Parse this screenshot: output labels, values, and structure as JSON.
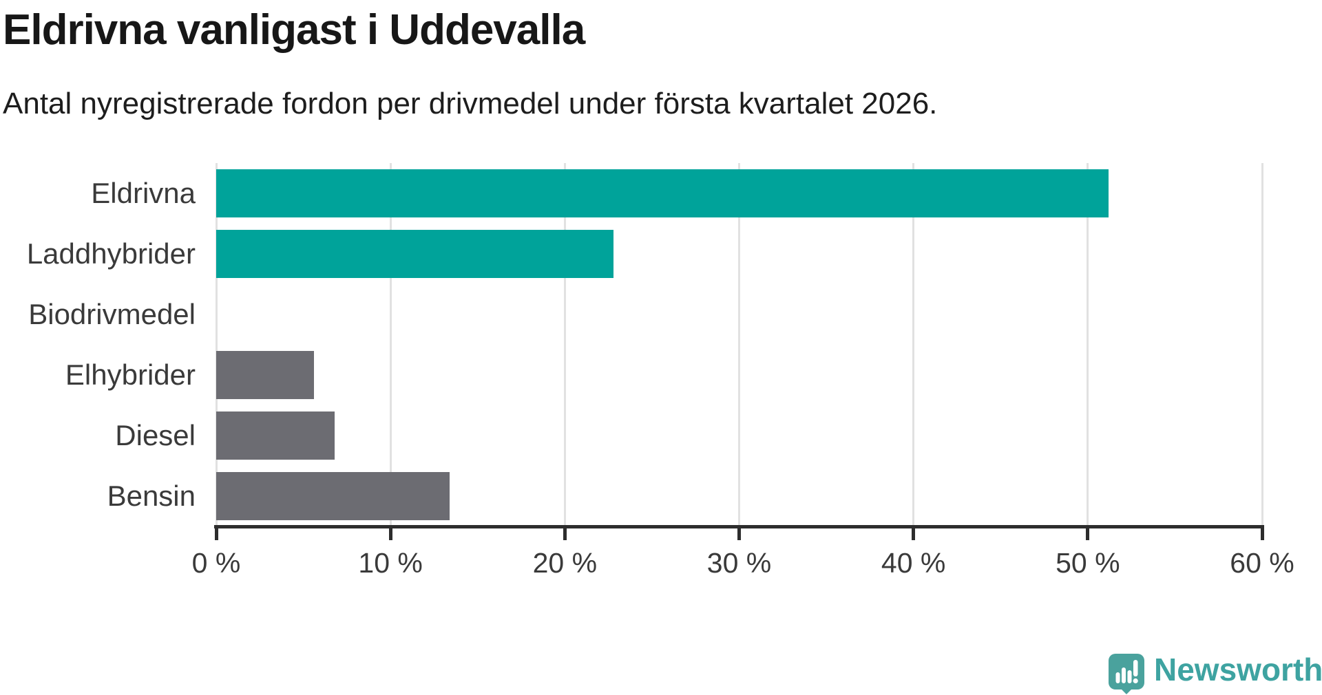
{
  "title": "Eldrivna vanligast i Uddevalla",
  "subtitle": "Antal nyregistrerade fordon per drivmedel under första kvartalet 2026.",
  "chart_data": {
    "type": "bar",
    "orientation": "horizontal",
    "title": "Eldrivna vanligast i Uddevalla",
    "subtitle": "Antal nyregistrerade fordon per drivmedel under första kvartalet 2026.",
    "categories": [
      "Eldrivna",
      "Laddhybrider",
      "Biodrivmedel",
      "Elhybrider",
      "Diesel",
      "Bensin"
    ],
    "values": [
      51.2,
      22.8,
      0,
      5.6,
      6.8,
      13.4
    ],
    "unit": "%",
    "xlim": [
      0,
      60
    ],
    "x_ticks": [
      0,
      10,
      20,
      30,
      40,
      50,
      60
    ],
    "x_tick_labels": [
      "0 %",
      "10 %",
      "20 %",
      "30 %",
      "40 %",
      "50 %",
      "60 %"
    ],
    "grid": true,
    "legend": "none",
    "bar_colors": [
      "#00A39A",
      "#00A39A",
      "#00A39A",
      "#6C6C72",
      "#6C6C72",
      "#6C6C72"
    ],
    "highlight_color": "#00A39A",
    "default_color": "#6C6C72",
    "gridline_color": "#e1e1e1",
    "axis_color": "#2d2d2d"
  },
  "branding": {
    "logo_text": "Newsworthy",
    "logo_text_color": "#3ea3a1",
    "logo_bubble_color": "#4AA29D",
    "logo_icon": "bar-chart-exclamation-bubble-icon"
  }
}
